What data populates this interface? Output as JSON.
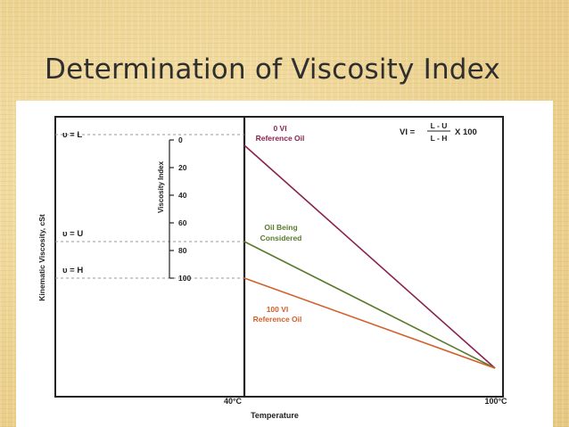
{
  "slide": {
    "title": "Determination of Viscosity Index"
  },
  "diagram": {
    "y_axis_label": "Kinematic Viscosity, cSt",
    "x_axis_label": "Temperature",
    "x_tick_40": "40°C",
    "x_tick_100": "100°C",
    "level_L": "υ = L",
    "level_U": "υ = U",
    "level_H": "υ = H",
    "scale_label": "Viscosity Index",
    "scale_ticks": [
      "0",
      "20",
      "40",
      "60",
      "80",
      "100"
    ],
    "formula_lhs": "VI =",
    "formula_num": "L - U",
    "formula_den": "L - H",
    "formula_rhs": "X 100",
    "zero_vi_line1": "0 VI",
    "zero_vi_line2": "Reference Oil",
    "oil_line1": "Oil Being",
    "oil_line2": "Considered",
    "hundred_vi_line1": "100 VI",
    "hundred_vi_line2": "Reference Oil",
    "colors": {
      "zero_vi": "#8b2252",
      "oil": "#5a7a2e",
      "hundred_vi": "#d2602a"
    }
  }
}
